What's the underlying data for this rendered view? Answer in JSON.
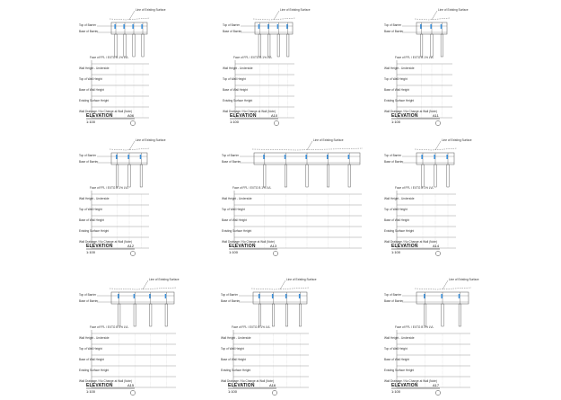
{
  "sheet": {
    "panels": [
      {
        "elevation_label": "ELEVATION",
        "scale": "1:100",
        "ref": "A06",
        "section": "1",
        "top_label": "Top of Barrier",
        "base_label": "Base of Barrier",
        "surface_label": "Line of Existing Surface",
        "ffl_label": "Face of FFL / EXTG B 1% LVL",
        "rows": [
          "Wall Height - Underside",
          "Top of Wall Height",
          "Base of Wall Height",
          "Existing Surface Height",
          "Wall Drainage / No Change at Wall (Note)"
        ]
      },
      {
        "elevation_label": "ELEVATION",
        "scale": "1:100",
        "ref": "A10",
        "section": "1",
        "top_label": "Top of Barrier",
        "base_label": "Base of Barrier",
        "surface_label": "Line of Existing Surface",
        "ffl_label": "Face of FFL / EXTG B 1% LVL",
        "rows": [
          "Wall Height - Underside",
          "Top of Wall Height",
          "Base of Wall Height",
          "Existing Surface Height",
          "Wall Drainage / No Change at Wall (Note)"
        ]
      },
      {
        "elevation_label": "ELEVATION",
        "scale": "1:100",
        "ref": "A11",
        "section": "1",
        "top_label": "Top of Barrier",
        "base_label": "Base of Barrier",
        "surface_label": "Line of Existing Surface",
        "ffl_label": "Face of FFL / EXTG B 1% LVL",
        "rows": [
          "Wall Height - Underside",
          "Top of Wall Height",
          "Base of Wall Height",
          "Existing Surface Height",
          "Wall Drainage / No Change at Wall (Note)"
        ]
      },
      {
        "elevation_label": "ELEVATION",
        "scale": "1:100",
        "ref": "A12",
        "section": "1",
        "top_label": "Top of Barrier",
        "base_label": "Base of Barrier",
        "surface_label": "Line of Existing Surface",
        "ffl_label": "Face of FFL / EXTG B 1% LVL",
        "rows": [
          "Wall Height - Underside",
          "Top of Wall Height",
          "Base of Wall Height",
          "Existing Surface Height",
          "Wall Drainage / No Change at Wall (Note)"
        ]
      },
      {
        "elevation_label": "ELEVATION",
        "scale": "1:100",
        "ref": "A13",
        "section": "1",
        "top_label": "Top of Barrier",
        "base_label": "Base of Barrier",
        "surface_label": "Line of Existing Surface",
        "ffl_label": "Face of FFL / EXTG B 1% LVL",
        "rows": [
          "Wall Height - Underside",
          "Top of Wall Height",
          "Base of Wall Height",
          "Existing Surface Height",
          "Wall Drainage / No Change at Wall (Note)"
        ]
      },
      {
        "elevation_label": "ELEVATION",
        "scale": "1:100",
        "ref": "A14",
        "section": "1",
        "top_label": "Top of Barrier",
        "base_label": "Base of Barrier",
        "surface_label": "Line of Existing Surface",
        "ffl_label": "Face of FFL / EXTG B 1% LVL",
        "rows": [
          "Wall Height - Underside",
          "Top of Wall Height",
          "Base of Wall Height",
          "Existing Surface Height",
          "Wall Drainage / No Change at Wall (Note)"
        ]
      },
      {
        "elevation_label": "ELEVATION",
        "scale": "1:100",
        "ref": "A15",
        "section": "1",
        "top_label": "Top of Barrier",
        "base_label": "Base of Barrier",
        "surface_label": "Line of Existing Surface",
        "ffl_label": "Face of FFL / EXTG B 1% LVL",
        "rows": [
          "Wall Height - Underside",
          "Top of Wall Height",
          "Base of Wall Height",
          "Existing Surface Height",
          "Wall Drainage / No Change at Wall (Note)"
        ]
      },
      {
        "elevation_label": "ELEVATION",
        "scale": "1:100",
        "ref": "A16",
        "section": "1",
        "top_label": "Top of Barrier",
        "base_label": "Base of Barrier",
        "surface_label": "Line of Existing Surface",
        "ffl_label": "Face of FFL / EXTG B 1% LVL",
        "rows": [
          "Wall Height - Underside",
          "Top of Wall Height",
          "Base of Wall Height",
          "Existing Surface Height",
          "Wall Drainage / No Change at Wall (Note)"
        ]
      },
      {
        "elevation_label": "ELEVATION",
        "scale": "1:100",
        "ref": "A17",
        "section": "1",
        "top_label": "Top of Barrier",
        "base_label": "Base of Barrier",
        "surface_label": "Line of Existing Surface",
        "ffl_label": "Face of FFL / EXTG B 1% LVL",
        "rows": [
          "Wall Height - Underside",
          "Top of Wall Height",
          "Base of Wall Height",
          "Existing Surface Height",
          "Wall Drainage / No Change at Wall (Note)"
        ]
      }
    ],
    "colors": {
      "line": "#555555",
      "accent": "#3b8fd9",
      "text": "#222222"
    }
  }
}
